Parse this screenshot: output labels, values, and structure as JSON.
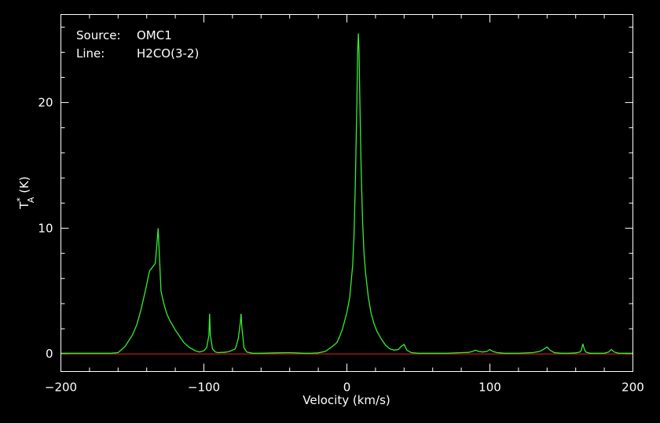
{
  "chart_data": {
    "type": "line",
    "annotations": [
      {
        "key": "Source:",
        "value": "OMC1"
      },
      {
        "key": "Line:",
        "value": "H2CO(3-2)"
      }
    ],
    "xlabel": "Velocity (km/s)",
    "ylabel": {
      "base": "T",
      "sub": "A",
      "sup": "*",
      "unit": " (K)"
    },
    "xlim": [
      -200,
      200
    ],
    "ylim": [
      -1.4,
      27
    ],
    "x_ticks": [
      -200,
      -100,
      0,
      100,
      200
    ],
    "x_tick_labels": [
      "−200",
      "−100",
      "0",
      "100",
      "200"
    ],
    "y_ticks": [
      0,
      10,
      20
    ],
    "y_tick_labels": [
      "0",
      "10",
      "20"
    ],
    "grid": false,
    "colors": {
      "spectrum": "#33ee33",
      "baseline": "#ee2222",
      "axes": "#ffffff",
      "background": "#000000"
    },
    "series": [
      {
        "x": [
          -200,
          -180,
          -165,
          -160,
          -155,
          -150,
          -147,
          -144,
          -141,
          -138,
          -136,
          -134,
          -133,
          -132,
          -131,
          -130,
          -128,
          -126,
          -124,
          -122,
          -120,
          -117,
          -114,
          -110,
          -106,
          -103,
          -100,
          -98,
          -96.5,
          -96,
          -95.5,
          -94,
          -92,
          -90,
          -88,
          -86,
          -84,
          -82,
          -80,
          -78,
          -76,
          -74.5,
          -74,
          -73.5,
          -72,
          -70,
          -66,
          -60,
          -50,
          -40,
          -30,
          -25,
          -20,
          -15,
          -10,
          -7,
          -5,
          -3,
          0,
          2,
          4,
          5,
          6,
          7,
          7.5,
          8,
          8.5,
          9,
          10,
          11,
          12,
          13,
          14,
          15,
          17,
          19,
          21,
          24,
          27,
          30,
          33,
          36,
          38,
          40,
          42,
          45,
          50,
          60,
          70,
          80,
          85,
          88,
          90,
          92,
          95,
          98,
          100,
          102,
          105,
          110,
          120,
          130,
          135,
          138,
          140,
          142,
          145,
          150,
          155,
          160,
          163,
          164,
          165,
          166,
          167,
          170,
          175,
          180,
          183,
          185,
          187,
          190,
          195,
          200
        ],
        "y": [
          0.05,
          0.05,
          0.05,
          0.1,
          0.6,
          1.5,
          2.3,
          3.5,
          5.0,
          6.6,
          6.9,
          7.2,
          8.5,
          10.0,
          7.5,
          5.0,
          4.0,
          3.2,
          2.7,
          2.3,
          1.9,
          1.4,
          0.9,
          0.5,
          0.25,
          0.15,
          0.25,
          0.5,
          1.5,
          3.2,
          1.5,
          0.4,
          0.15,
          0.1,
          0.12,
          0.12,
          0.15,
          0.2,
          0.3,
          0.4,
          1.2,
          2.5,
          3.2,
          2.2,
          0.5,
          0.15,
          0.05,
          0.05,
          0.08,
          0.1,
          0.05,
          0.05,
          0.08,
          0.2,
          0.6,
          0.9,
          1.4,
          2.0,
          3.3,
          4.5,
          7.0,
          9.5,
          14.0,
          20.0,
          24.0,
          25.5,
          24.0,
          20.5,
          14.5,
          10.5,
          8.0,
          6.5,
          5.5,
          4.5,
          3.2,
          2.4,
          1.8,
          1.2,
          0.7,
          0.4,
          0.3,
          0.35,
          0.6,
          0.75,
          0.3,
          0.1,
          0.05,
          0.05,
          0.05,
          0.1,
          0.12,
          0.2,
          0.3,
          0.2,
          0.15,
          0.2,
          0.35,
          0.2,
          0.1,
          0.05,
          0.05,
          0.1,
          0.2,
          0.4,
          0.55,
          0.3,
          0.1,
          0.05,
          0.05,
          0.08,
          0.15,
          0.3,
          0.8,
          0.4,
          0.15,
          0.05,
          0.05,
          0.05,
          0.15,
          0.35,
          0.15,
          0.05,
          0.05,
          0.05
        ]
      }
    ],
    "baseline": 0
  }
}
